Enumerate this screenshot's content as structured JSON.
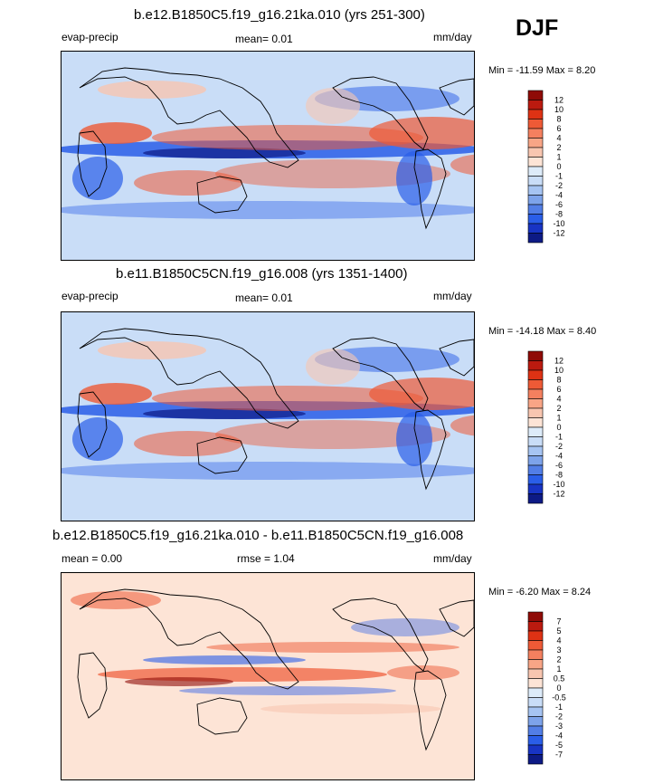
{
  "season": "DJF",
  "palette": {
    "dark_blue": "#0d1a85",
    "mid_blue": "#2a5ee8",
    "light_blue": "#c9ddf7",
    "white": "#f6f3f0",
    "light_red": "#f8c6b0",
    "mid_red": "#ee5a36",
    "dark_red": "#8f0b07"
  },
  "chart_data": [
    {
      "type": "heatmap",
      "title": "b.e12.B1850C5.f19_g16.21ka.010 (yrs 251-300)",
      "variable": "evap-precip",
      "mean_text": "mean=   0.01",
      "units": "mm/day",
      "minmax_text": "Min = -11.59 Max =   8.20",
      "min": -11.59,
      "max": 8.2,
      "levels": [
        "12",
        "10",
        "8",
        "6",
        "4",
        "2",
        "1",
        "0",
        "-1",
        "-2",
        "-4",
        "-6",
        "-8",
        "-10",
        "-12"
      ],
      "colors": [
        "#8f0b07",
        "#bb1a0f",
        "#de3214",
        "#ee5a36",
        "#f4805f",
        "#f8a586",
        "#f8c6b0",
        "#fde4d6",
        "#ddebf9",
        "#c9ddf7",
        "#a6c4f2",
        "#7da3ea",
        "#527ee6",
        "#2a5ee8",
        "#1834c4",
        "#0d1a85"
      ]
    },
    {
      "type": "heatmap",
      "title": "b.e11.B1850C5CN.f19_g16.008 (yrs 1351-1400)",
      "variable": "evap-precip",
      "mean_text": "mean=   0.01",
      "units": "mm/day",
      "minmax_text": "Min = -14.18 Max =   8.40",
      "min": -14.18,
      "max": 8.4,
      "levels": [
        "12",
        "10",
        "8",
        "6",
        "4",
        "2",
        "1",
        "0",
        "-1",
        "-2",
        "-4",
        "-6",
        "-8",
        "-10",
        "-12"
      ],
      "colors": [
        "#8f0b07",
        "#bb1a0f",
        "#de3214",
        "#ee5a36",
        "#f4805f",
        "#f8a586",
        "#f8c6b0",
        "#fde4d6",
        "#ddebf9",
        "#c9ddf7",
        "#a6c4f2",
        "#7da3ea",
        "#527ee6",
        "#2a5ee8",
        "#1834c4",
        "#0d1a85"
      ]
    },
    {
      "type": "heatmap",
      "title": "b.e12.B1850C5.f19_g16.21ka.010 - b.e11.B1850C5CN.f19_g16.008",
      "mean_text": "mean =   0.00",
      "rmse_text": "rmse =   1.04",
      "units": "mm/day",
      "minmax_text": "Min =  -6.20 Max =   8.24",
      "min": -6.2,
      "max": 8.24,
      "levels": [
        "7",
        "5",
        "4",
        "3",
        "2",
        "1",
        "0.5",
        "0",
        "-0.5",
        "-1",
        "-2",
        "-3",
        "-4",
        "-5",
        "-7"
      ],
      "colors": [
        "#8f0b07",
        "#bb1a0f",
        "#de3214",
        "#ee5a36",
        "#f4805f",
        "#f8a586",
        "#f8c6b0",
        "#fde4d6",
        "#ddebf9",
        "#c9ddf7",
        "#a6c4f2",
        "#7da3ea",
        "#527ee6",
        "#2a5ee8",
        "#1834c4",
        "#0d1a85"
      ]
    }
  ]
}
